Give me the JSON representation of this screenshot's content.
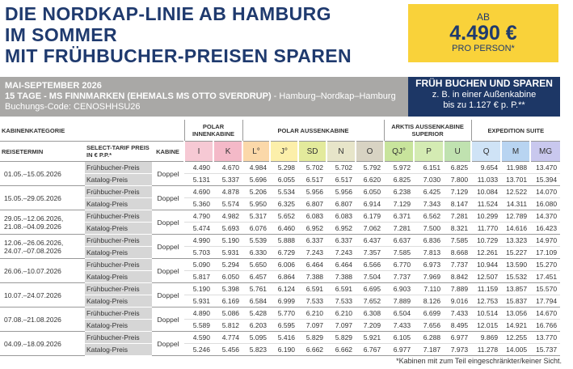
{
  "header": {
    "title_lines": [
      "DIE NORDKAP-LINIE AB HAMBURG",
      "IM SOMMER",
      "MIT FRÜHBUCHER-PREISEN SPAREN"
    ],
    "price_box": {
      "prefix": "AB",
      "price": "4.490 €",
      "suffix": "PRO PERSON*"
    }
  },
  "banner": {
    "period": "MAI-SEPTEMBER 2026",
    "ship": "15 TAGE - MS FINNMARKEN (EHEMALS MS OTTO SVERDRUP)",
    "route": "- Hamburg–Nordkap–Hamburg",
    "code": "Buchungs-Code: CENOSHHSU26"
  },
  "promo": {
    "title": "FRÜH BUCHEN UND SPAREN",
    "line1": "z. B. in einer Außenkabine",
    "line2": "bis zu 1.127 € p. P.**"
  },
  "table": {
    "headers": {
      "category": "KABINENKATEGORIE",
      "date": "REISETERMIN",
      "tariff": "SELECT-TARIF PREIS IN € P.P.*",
      "cabin": "KABINE"
    },
    "groups": [
      {
        "label": "POLAR INNENKABINE",
        "columns": [
          "I",
          "K"
        ]
      },
      {
        "label": "POLAR AUSSENKABINE",
        "columns": [
          "L°",
          "J°",
          "SD",
          "N",
          "O"
        ]
      },
      {
        "label": "ARKTIS AUSSENKABINE SUPERIOR",
        "columns": [
          "QJ°",
          "P",
          "U"
        ]
      },
      {
        "label": "EXPEDITION SUITE",
        "columns": [
          "Q",
          "M",
          "MG"
        ]
      }
    ],
    "rows": [
      {
        "date": "01.05.–15.05.2026",
        "cabin": "Doppel",
        "tariffs": [
          {
            "label": "Frühbucher-Preis",
            "prices": [
              "4.490",
              "4.670",
              "4.984",
              "5.298",
              "5.702",
              "5.702",
              "5.792",
              "5.972",
              "6.151",
              "6.825",
              "9.654",
              "11.988",
              "13.470"
            ]
          },
          {
            "label": "Katalog-Preis",
            "prices": [
              "5.131",
              "5.337",
              "5.696",
              "6.055",
              "6.517",
              "6.517",
              "6.620",
              "6.825",
              "7.030",
              "7.800",
              "11.033",
              "13.701",
              "15.394"
            ]
          }
        ]
      },
      {
        "date": "15.05.–29.05.2026",
        "cabin": "Doppel",
        "tariffs": [
          {
            "label": "Frühbucher-Preis",
            "prices": [
              "4.690",
              "4.878",
              "5.206",
              "5.534",
              "5.956",
              "5.956",
              "6.050",
              "6.238",
              "6.425",
              "7.129",
              "10.084",
              "12.522",
              "14.070"
            ]
          },
          {
            "label": "Katalog-Preis",
            "prices": [
              "5.360",
              "5.574",
              "5.950",
              "6.325",
              "6.807",
              "6.807",
              "6.914",
              "7.129",
              "7.343",
              "8.147",
              "11.524",
              "14.311",
              "16.080"
            ]
          }
        ]
      },
      {
        "date": "29.05.–12.06.2026, 21.08.–04.09.2026",
        "cabin": "Doppel",
        "tariffs": [
          {
            "label": "Frühbucher-Preis",
            "prices": [
              "4.790",
              "4.982",
              "5.317",
              "5.652",
              "6.083",
              "6.083",
              "6.179",
              "6.371",
              "6.562",
              "7.281",
              "10.299",
              "12.789",
              "14.370"
            ]
          },
          {
            "label": "Katalog-Preis",
            "prices": [
              "5.474",
              "5.693",
              "6.076",
              "6.460",
              "6.952",
              "6.952",
              "7.062",
              "7.281",
              "7.500",
              "8.321",
              "11.770",
              "14.616",
              "16.423"
            ]
          }
        ]
      },
      {
        "date": "12.06.–26.06.2026, 24.07.–07.08.2026",
        "cabin": "Doppel",
        "tariffs": [
          {
            "label": "Frühbucher-Preis",
            "prices": [
              "4.990",
              "5.190",
              "5.539",
              "5.888",
              "6.337",
              "6.337",
              "6.437",
              "6.637",
              "6.836",
              "7.585",
              "10.729",
              "13.323",
              "14.970"
            ]
          },
          {
            "label": "Katalog-Preis",
            "prices": [
              "5.703",
              "5.931",
              "6.330",
              "6.729",
              "7.243",
              "7.243",
              "7.357",
              "7.585",
              "7.813",
              "8.668",
              "12.261",
              "15.227",
              "17.109"
            ]
          }
        ]
      },
      {
        "date": "26.06.–10.07.2026",
        "cabin": "Doppel",
        "tariffs": [
          {
            "label": "Frühbucher-Preis",
            "prices": [
              "5.090",
              "5.294",
              "5.650",
              "6.006",
              "6.464",
              "6.464",
              "6.566",
              "6.770",
              "6.973",
              "7.737",
              "10.944",
              "13.590",
              "15.270"
            ]
          },
          {
            "label": "Katalog-Preis",
            "prices": [
              "5.817",
              "6.050",
              "6.457",
              "6.864",
              "7.388",
              "7.388",
              "7.504",
              "7.737",
              "7.969",
              "8.842",
              "12.507",
              "15.532",
              "17.451"
            ]
          }
        ]
      },
      {
        "date": "10.07.–24.07.2026",
        "cabin": "Doppel",
        "tariffs": [
          {
            "label": "Frühbucher-Preis",
            "prices": [
              "5.190",
              "5.398",
              "5.761",
              "6.124",
              "6.591",
              "6.591",
              "6.695",
              "6.903",
              "7.110",
              "7.889",
              "11.159",
              "13.857",
              "15.570"
            ]
          },
          {
            "label": "Katalog-Preis",
            "prices": [
              "5.931",
              "6.169",
              "6.584",
              "6.999",
              "7.533",
              "7.533",
              "7.652",
              "7.889",
              "8.126",
              "9.016",
              "12.753",
              "15.837",
              "17.794"
            ]
          }
        ]
      },
      {
        "date": "07.08.–21.08.2026",
        "cabin": "Doppel",
        "tariffs": [
          {
            "label": "Frühbucher-Preis",
            "prices": [
              "4.890",
              "5.086",
              "5.428",
              "5.770",
              "6.210",
              "6.210",
              "6.308",
              "6.504",
              "6.699",
              "7.433",
              "10.514",
              "13.056",
              "14.670"
            ]
          },
          {
            "label": "Katalog-Preis",
            "prices": [
              "5.589",
              "5.812",
              "6.203",
              "6.595",
              "7.097",
              "7.097",
              "7.209",
              "7.433",
              "7.656",
              "8.495",
              "12.015",
              "14.921",
              "16.766"
            ]
          }
        ]
      },
      {
        "date": "04.09.–18.09.2026",
        "cabin": "Doppel",
        "tariffs": [
          {
            "label": "Frühbucher-Preis",
            "prices": [
              "4.590",
              "4.774",
              "5.095",
              "5.416",
              "5.829",
              "5.829",
              "5.921",
              "6.105",
              "6.288",
              "6.977",
              "9.869",
              "12.255",
              "13.770"
            ]
          },
          {
            "label": "Katalog-Preis",
            "prices": [
              "5.246",
              "5.456",
              "5.823",
              "6.190",
              "6.662",
              "6.662",
              "6.767",
              "6.977",
              "7.187",
              "7.973",
              "11.278",
              "14.005",
              "15.737"
            ]
          }
        ]
      }
    ]
  },
  "footnote": "*Kabinen mit zum Teil eingeschränkter/keiner Sicht."
}
